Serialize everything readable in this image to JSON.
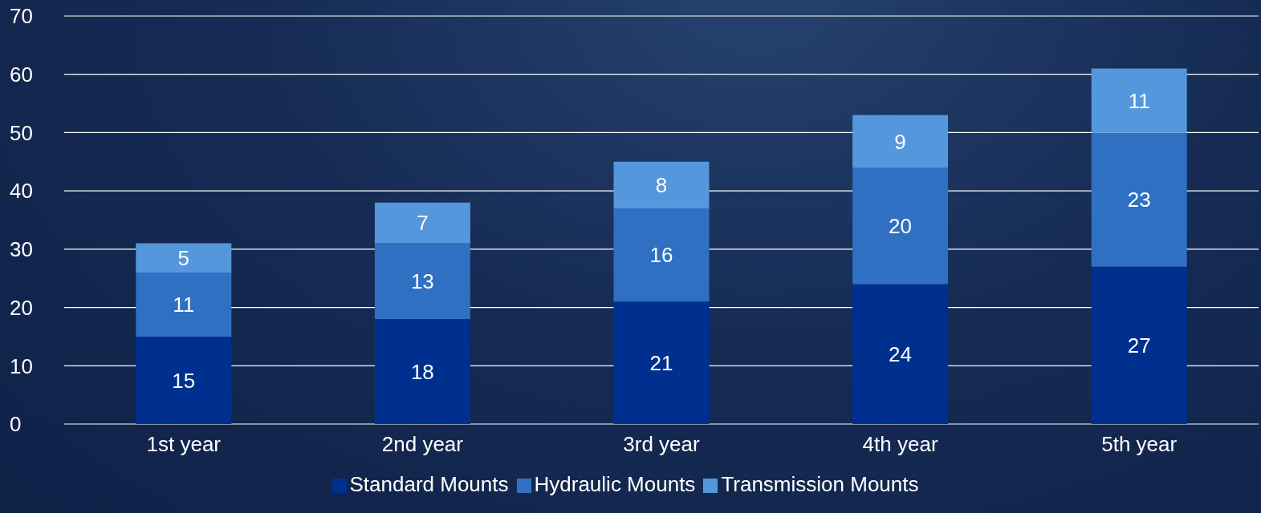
{
  "chart_data": {
    "type": "bar",
    "stacked": true,
    "categories": [
      "1st year",
      "2nd year",
      "3rd year",
      "4th year",
      "5th year"
    ],
    "series": [
      {
        "name": "Standard Mounts",
        "color": "#00308f",
        "values": [
          15,
          18,
          21,
          24,
          27
        ]
      },
      {
        "name": "Hydraulic Mounts",
        "color": "#3070c2",
        "values": [
          11,
          13,
          16,
          20,
          23
        ]
      },
      {
        "name": "Transmission Mounts",
        "color": "#5597dc",
        "values": [
          5,
          7,
          8,
          9,
          11
        ]
      }
    ],
    "ylim": [
      0,
      70
    ],
    "yticks": [
      0,
      10,
      20,
      30,
      40,
      50,
      60,
      70
    ],
    "grid": "y",
    "legend": "bottom",
    "data_labels": true
  }
}
